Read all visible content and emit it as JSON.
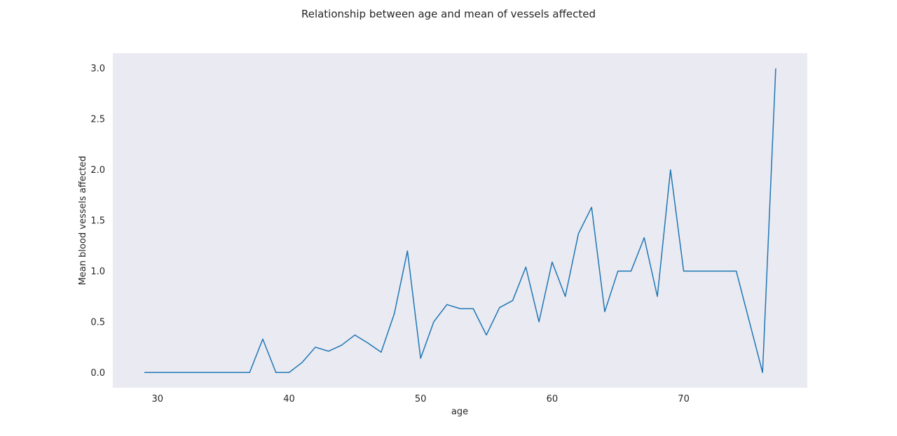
{
  "chart_data": {
    "type": "line",
    "title": "Relationship between age and mean of vessels affected",
    "xlabel": "age",
    "ylabel": "Mean blood vessels affected",
    "xlim": [
      26.6,
      79.4
    ],
    "ylim": [
      -0.15,
      3.15
    ],
    "x_ticks": [
      30,
      40,
      50,
      60,
      70
    ],
    "y_ticks": [
      0.0,
      0.5,
      1.0,
      1.5,
      2.0,
      2.5,
      3.0
    ],
    "y_tick_labels": [
      "0.0",
      "0.5",
      "1.0",
      "1.5",
      "2.0",
      "2.5",
      "3.0"
    ],
    "grid": false,
    "background": "#eaeaf2",
    "line_color": "#1f77b4",
    "series": [
      {
        "x": [
          29,
          34,
          35,
          37,
          38,
          39,
          40,
          41,
          42,
          43,
          44,
          45,
          46,
          47,
          48,
          49,
          50,
          51,
          52,
          53,
          54,
          55,
          56,
          57,
          58,
          59,
          60,
          61,
          62,
          63,
          64,
          65,
          66,
          67,
          68,
          69,
          70,
          71,
          74,
          76,
          77
        ],
        "values": [
          0.0,
          0.0,
          0.0,
          0.0,
          0.33,
          0.0,
          0.0,
          0.1,
          0.25,
          0.21,
          0.27,
          0.37,
          0.29,
          0.2,
          0.58,
          1.2,
          0.14,
          0.5,
          0.67,
          0.63,
          0.63,
          0.37,
          0.64,
          0.71,
          1.04,
          0.5,
          1.09,
          0.75,
          1.37,
          1.63,
          0.6,
          1.0,
          1.0,
          1.33,
          0.75,
          2.0,
          1.0,
          1.0,
          1.0,
          0.0,
          3.0
        ]
      }
    ]
  }
}
